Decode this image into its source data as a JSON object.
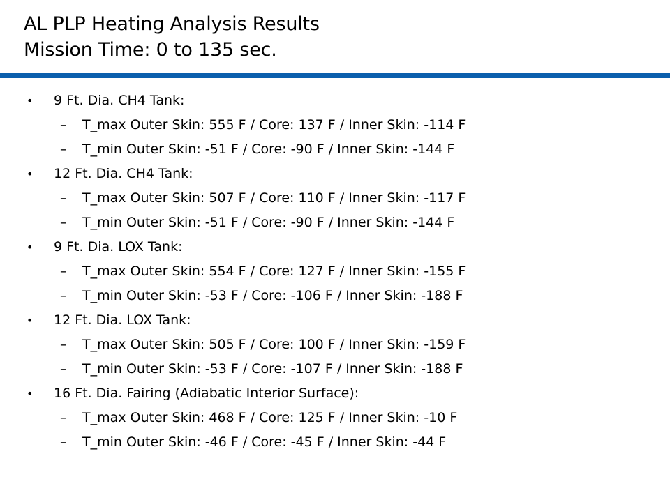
{
  "title": {
    "line1": "AL PLP Heating Analysis Results",
    "line2": "Mission Time: 0 to 135 sec."
  },
  "colors": {
    "rule": "#0b5fad"
  },
  "bullet_glyph": "•",
  "dash_glyph": "–",
  "items": [
    {
      "label": "9 Ft. Dia. CH4 Tank:",
      "subs": [
        "T_max Outer Skin: 555 F / Core: 137 F / Inner Skin: -114 F",
        "T_min Outer Skin: -51 F / Core: -90 F / Inner Skin: -144 F"
      ]
    },
    {
      "label": "12 Ft. Dia. CH4 Tank:",
      "subs": [
        "T_max Outer Skin: 507 F / Core: 110 F / Inner Skin: -117 F",
        "T_min Outer Skin: -51 F / Core: -90 F / Inner Skin: -144 F"
      ]
    },
    {
      "label": "9 Ft. Dia. LOX Tank:",
      "subs": [
        "T_max Outer Skin: 554 F / Core: 127 F / Inner Skin: -155 F",
        "T_min Outer Skin: -53 F / Core: -106 F / Inner Skin: -188 F"
      ]
    },
    {
      "label": "12 Ft. Dia. LOX Tank:",
      "subs": [
        "T_max Outer Skin: 505 F / Core: 100 F / Inner Skin: -159 F",
        "T_min Outer Skin: -53 F / Core: -107 F / Inner Skin: -188 F"
      ]
    },
    {
      "label": "16 Ft. Dia. Fairing (Adiabatic Interior Surface):",
      "subs": [
        "T_max Outer Skin: 468 F / Core: 125 F / Inner Skin: -10 F",
        "T_min Outer Skin: -46 F / Core: -45 F / Inner Skin: -44 F"
      ]
    }
  ]
}
